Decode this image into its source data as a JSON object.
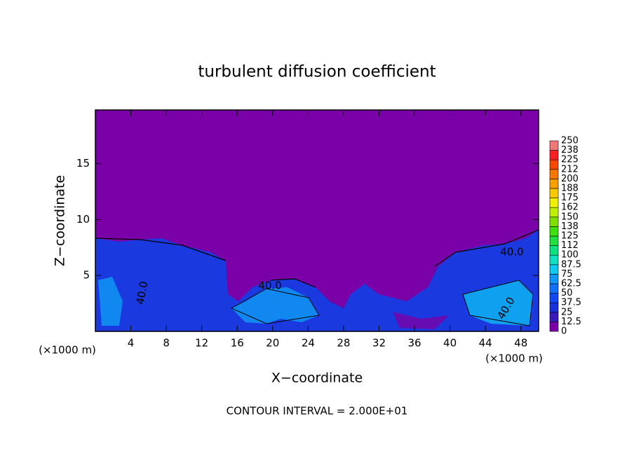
{
  "chart_data": {
    "type": "contour",
    "title": "turbulent diffusion coefficient",
    "x_label": "X−coordinate",
    "y_label": "Z−coordinate",
    "x_unit_labels": [
      "(×1000 m)",
      "(×1000 m)"
    ],
    "footer": "CONTOUR INTERVAL = 2.000E+01",
    "contour_labels": [
      "40.0",
      "40.0",
      "40.0",
      "40.0"
    ],
    "xlim": [
      0,
      50
    ],
    "ylim": [
      0,
      19.8
    ],
    "xticks": [
      4,
      8,
      12,
      16,
      20,
      24,
      28,
      32,
      36,
      40,
      44,
      48
    ],
    "yticks": [
      5,
      10,
      15
    ],
    "colorbar": {
      "ticks": [
        0,
        12.5,
        25,
        37.5,
        50,
        62.5,
        75,
        87.5,
        100,
        {
          "value": 112.5,
          "label": "112"
        },
        125,
        {
          "value": 137.5,
          "label": "138"
        },
        150,
        {
          "value": 162.5,
          "label": "162"
        },
        175,
        {
          "value": 187.5,
          "label": "188"
        },
        200,
        {
          "value": 212.5,
          "label": "212"
        },
        225,
        {
          "value": 237.5,
          "label": "238"
        },
        250
      ],
      "colors": [
        "#7a00a8",
        "#3a1ab8",
        "#1a30d8",
        "#1048f0",
        "#1070f8",
        "#1098f8",
        "#10c8f0",
        "#10e0c0",
        "#10e080",
        "#20e040",
        "#40e010",
        "#80e000",
        "#c0f000",
        "#f0f000",
        "#f8c800",
        "#f8a000",
        "#f87800",
        "#f84800",
        "#f82020",
        "#f07878"
      ]
    }
  }
}
